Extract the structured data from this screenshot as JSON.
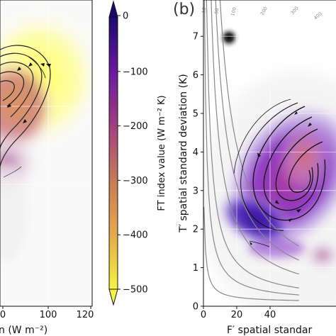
{
  "chart_data": [
    {
      "panel": "",
      "type": "heatmap",
      "xlabel": "n (W m⁻²)",
      "xticks": [
        "0",
        "100",
        "120"
      ],
      "colors": {
        "low": "#ffff66",
        "mid": "#c0527f",
        "high": "#2a0a85"
      }
    },
    {
      "type": "colorbar",
      "label": "FT index value (W m⁻² K)",
      "ticks": [
        "0",
        "−100",
        "−200",
        "−300",
        "−400",
        "−500"
      ],
      "range": [
        -500,
        0
      ],
      "extend": "both"
    },
    {
      "panel": "(b)",
      "type": "heatmap",
      "xlabel": "F′ spatial standar",
      "ylabel": "T′ spatial standard deviation (K)",
      "xlim": [
        0,
        55
      ],
      "ylim": [
        0,
        7.6
      ],
      "xticks": [
        "0",
        "20",
        "40"
      ],
      "yticks": [
        "0",
        "1",
        "2",
        "3",
        "4",
        "5",
        "6",
        "7"
      ],
      "contour_labels": [
        "10",
        "50",
        "100",
        "200",
        "300",
        "400"
      ],
      "grid": true
    }
  ]
}
